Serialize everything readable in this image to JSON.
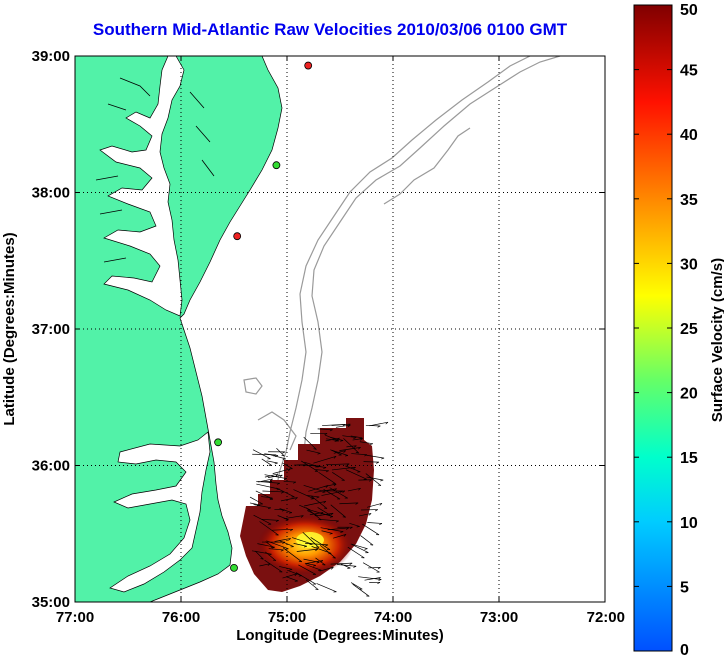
{
  "title": "Southern Mid-Atlantic Raw Velocities 2010/03/06 0100 GMT",
  "axes": {
    "xlabel": "Longitude (Degrees:Minutes)",
    "ylabel": "Latitude (Degrees:Minutes)",
    "xticks": [
      "77:00",
      "76:00",
      "75:00",
      "74:00",
      "73:00",
      "72:00"
    ],
    "yticks": [
      "39:00",
      "38:00",
      "37:00",
      "36:00",
      "35:00"
    ],
    "xlim": [
      -77,
      -72
    ],
    "ylim": [
      35,
      39
    ],
    "grid": true
  },
  "colorbar": {
    "label": "Surface Velocity (cm/s)",
    "ticks": [
      "50",
      "45",
      "40",
      "35",
      "30",
      "25",
      "20",
      "15",
      "10",
      "5",
      "0"
    ],
    "range": [
      0,
      50
    ],
    "colormap": "jet"
  },
  "colors": {
    "land": "#52f2a8",
    "title": "#0000ee",
    "bathymetry": "#9a9a9a",
    "station_green": "#33dd33",
    "station_red": "#ee2222",
    "vector_core": "#ffee00",
    "vector_high": "#7a0000"
  },
  "stations": [
    {
      "type": "red",
      "lon": -74.8,
      "lat": 38.93
    },
    {
      "type": "green",
      "lon": -75.1,
      "lat": 38.2
    },
    {
      "type": "red",
      "lon": -75.47,
      "lat": 37.68
    },
    {
      "type": "green",
      "lon": -75.65,
      "lat": 36.17
    },
    {
      "type": "green",
      "lon": -75.5,
      "lat": 35.25
    }
  ]
}
